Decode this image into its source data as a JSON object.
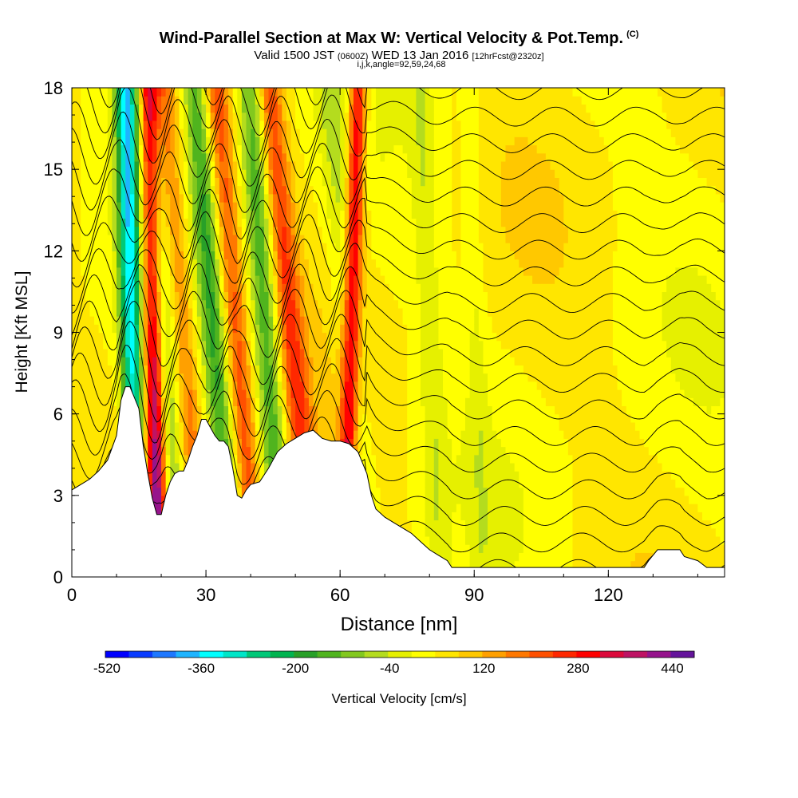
{
  "header": {
    "title": "Wind-Parallel Section at Max W: Vertical Velocity & Pot.Temp.",
    "copyright": "(C)",
    "valid_prefix": "Valid 1500 JST",
    "valid_utc": "(0600Z)",
    "valid_date": "WED 13 Jan 2016",
    "forecast": "[12hrFcst@2320z]",
    "indices": "i,j,k,angle=92,59,24,68"
  },
  "chart_data": {
    "type": "heatmap",
    "xlabel": "Distance [nm]",
    "ylabel": "Height [Kft MSL]",
    "xlim": [
      0,
      146
    ],
    "ylim": [
      0,
      18
    ],
    "x_ticks": [
      0,
      30,
      60,
      90,
      120
    ],
    "y_ticks": [
      0,
      3,
      6,
      9,
      12,
      15,
      18
    ],
    "grid": false,
    "colorbar": {
      "label": "Vertical Velocity [cm/s]",
      "tick_labels": [
        -520,
        -360,
        -200,
        -40,
        120,
        280,
        440
      ],
      "bins": [
        -520,
        -480,
        -440,
        -400,
        -360,
        -320,
        -280,
        -240,
        -200,
        -160,
        -120,
        -80,
        -40,
        0,
        40,
        80,
        120,
        160,
        200,
        240,
        280,
        320,
        360,
        400,
        440,
        480
      ],
      "colors": [
        "#0000ff",
        "#0a3cff",
        "#1e78ff",
        "#1eb4ff",
        "#00ffff",
        "#00e6c8",
        "#00c878",
        "#00b450",
        "#28a028",
        "#50b41e",
        "#82c81e",
        "#b4dc1e",
        "#e6f000",
        "#ffff00",
        "#ffe600",
        "#ffc800",
        "#ffa000",
        "#ff7800",
        "#ff5000",
        "#ff2800",
        "#ff0000",
        "#dc0a3c",
        "#be1464",
        "#96148c",
        "#64149b"
      ]
    },
    "terrain_kft": [
      [
        0,
        3.2
      ],
      [
        2,
        3.4
      ],
      [
        4,
        3.6
      ],
      [
        6,
        3.9
      ],
      [
        8,
        4.3
      ],
      [
        10,
        5.2
      ],
      [
        11,
        6.5
      ],
      [
        12,
        7.0
      ],
      [
        13,
        7.0
      ],
      [
        14,
        6.6
      ],
      [
        15,
        6.2
      ],
      [
        16,
        4.8
      ],
      [
        17,
        3.8
      ],
      [
        18,
        2.9
      ],
      [
        19,
        2.3
      ],
      [
        20,
        2.3
      ],
      [
        21,
        3.0
      ],
      [
        22,
        3.5
      ],
      [
        23,
        3.8
      ],
      [
        24,
        3.9
      ],
      [
        25,
        3.9
      ],
      [
        26,
        4.3
      ],
      [
        27,
        4.8
      ],
      [
        28,
        5.2
      ],
      [
        29,
        5.8
      ],
      [
        30,
        5.8
      ],
      [
        31,
        5.5
      ],
      [
        32,
        5.2
      ],
      [
        33,
        5.0
      ],
      [
        34,
        5.0
      ],
      [
        35,
        4.8
      ],
      [
        36,
        4.0
      ],
      [
        37,
        3.0
      ],
      [
        38,
        2.9
      ],
      [
        39,
        3.2
      ],
      [
        40,
        3.4
      ],
      [
        42,
        3.5
      ],
      [
        44,
        4.0
      ],
      [
        46,
        4.6
      ],
      [
        48,
        4.9
      ],
      [
        50,
        5.1
      ],
      [
        52,
        5.3
      ],
      [
        54,
        5.4
      ],
      [
        56,
        5.1
      ],
      [
        58,
        5.0
      ],
      [
        60,
        5.0
      ],
      [
        62,
        4.9
      ],
      [
        64,
        4.6
      ],
      [
        66,
        3.8
      ],
      [
        67,
        3.0
      ],
      [
        68,
        2.5
      ],
      [
        70,
        2.2
      ],
      [
        72,
        2.0
      ],
      [
        74,
        1.8
      ],
      [
        76,
        1.6
      ],
      [
        78,
        1.3
      ],
      [
        80,
        1.0
      ],
      [
        82,
        0.8
      ],
      [
        84,
        0.6
      ],
      [
        85,
        0.35
      ],
      [
        90,
        0.35
      ],
      [
        100,
        0.35
      ],
      [
        110,
        0.35
      ],
      [
        120,
        0.35
      ],
      [
        128,
        0.35
      ],
      [
        129,
        0.6
      ],
      [
        131,
        1.0
      ],
      [
        136,
        1.0
      ],
      [
        137,
        0.75
      ],
      [
        140,
        0.6
      ],
      [
        142,
        0.35
      ],
      [
        146,
        0.35
      ]
    ],
    "updrafts": [
      {
        "x0": 19.5,
        "x1": 17,
        "w": 420,
        "width": 2.2
      },
      {
        "x0": 29,
        "x1": 20.5,
        "w": 160,
        "width": 3.0
      },
      {
        "x0": 41,
        "x1": 32,
        "w": 200,
        "width": 3.0
      },
      {
        "x0": 54,
        "x1": 44,
        "w": 200,
        "width": 3.0
      },
      {
        "x0": 61,
        "x1": 64,
        "w": 300,
        "width": 2.0
      }
    ],
    "downdrafts": [
      {
        "x0": 14.5,
        "x1": 12,
        "w": -360,
        "width": 2.4
      },
      {
        "x0": 24,
        "x1": 16,
        "w": -160,
        "width": 3.2
      },
      {
        "x0": 36,
        "x1": 28,
        "w": -200,
        "width": 3.2
      },
      {
        "x0": 47,
        "x1": 40,
        "w": -200,
        "width": 3.2
      },
      {
        "x0": 66,
        "x1": 58,
        "w": -80,
        "width": 3.4
      },
      {
        "x0": 82,
        "x1": 78,
        "w": -60,
        "width": 2.5
      },
      {
        "x0": 92,
        "x1": 89,
        "w": -40,
        "width": 2.0
      }
    ]
  }
}
